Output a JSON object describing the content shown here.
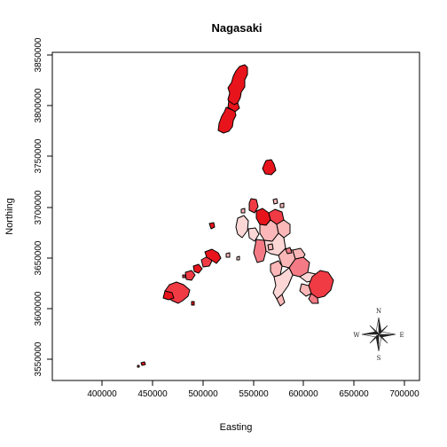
{
  "map": {
    "title": "Nagasaki",
    "xlabel": "Easting",
    "ylabel": "Northing",
    "x_ticks": [
      "400000",
      "450000",
      "500000",
      "550000",
      "600000",
      "650000",
      "700000"
    ],
    "y_ticks": [
      "3550000",
      "3600000",
      "3650000",
      "3700000",
      "3750000",
      "3800000",
      "3850000"
    ],
    "x_range": [
      355000,
      710000
    ],
    "y_range": [
      3525000,
      3852000
    ],
    "fill_colors": {
      "dark": "#e8141c",
      "mid_dark": "#f03b45",
      "mid": "#f47b85",
      "light": "#fbb7b7",
      "lightest": "#fdd6d6"
    },
    "border_color": "#000000"
  },
  "compass": {
    "north": "N",
    "south": "S",
    "east": "E",
    "west": "W"
  }
}
